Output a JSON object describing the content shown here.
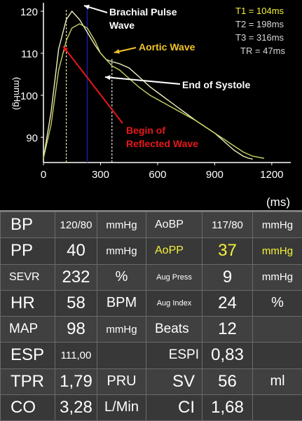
{
  "chart_data": {
    "type": "line",
    "ylabel": "(mmHg)",
    "xunit": "(ms)",
    "xlim": [
      0,
      1300
    ],
    "ylim": [
      84,
      122
    ],
    "xticks": [
      0,
      300,
      600,
      900,
      1200
    ],
    "yticks": [
      90,
      100,
      110,
      120
    ],
    "series": [
      {
        "x": [
          0,
          40,
          80,
          120,
          150,
          190,
          230,
          270,
          300,
          330,
          360,
          400,
          450,
          500,
          560,
          620,
          680,
          740,
          800,
          850,
          900,
          950,
          1000,
          1050,
          1080,
          1100
        ],
        "y": [
          85,
          96,
          111,
          118,
          120,
          118,
          115,
          112,
          110,
          108.5,
          108,
          107.5,
          106.5,
          104.5,
          102,
          100,
          98,
          96,
          94,
          92.5,
          91,
          89,
          87,
          85.5,
          85,
          84.8
        ]
      },
      {
        "x": [
          0,
          40,
          80,
          120,
          150,
          190,
          230,
          270,
          300,
          330,
          360,
          400,
          450,
          500,
          560,
          620,
          680,
          740,
          800,
          850,
          900,
          950,
          1000,
          1050,
          1100,
          1160
        ],
        "y": [
          85,
          93,
          106,
          113,
          116,
          117,
          116,
          113,
          110,
          108.5,
          107,
          106,
          104,
          102,
          100,
          98.5,
          97,
          95.5,
          94,
          92.5,
          91,
          89.5,
          88,
          86.5,
          85.5,
          85
        ]
      }
    ],
    "markers": [
      {
        "x": 120,
        "y0": 84,
        "y1": 120.5
      },
      {
        "x": 230,
        "y0": 84,
        "y1": 121
      },
      {
        "x": 360,
        "y0": 84,
        "y1": 109
      }
    ],
    "annotations": [
      {
        "text1": "Brachial Pulse",
        "text2": "Wave",
        "color": "#ffffff"
      },
      {
        "text1": "Aortic Wave",
        "color": "#f2c428"
      },
      {
        "text1": "End of Systole",
        "color": "#ffffff"
      },
      {
        "text1": "Begin of",
        "text2": "Reflected Wave",
        "color": "#e81818"
      }
    ],
    "timings": [
      {
        "label": "T1 = ",
        "value": "104ms",
        "color": "#f4f23a"
      },
      {
        "label": "T2 = ",
        "value": "198ms",
        "color": "#d8d8d8"
      },
      {
        "label": "T3 = ",
        "value": "316ms",
        "color": "#d8d8d8"
      },
      {
        "label": "TR = ",
        "value": "47ms",
        "color": "#d8d8d8"
      }
    ],
    "colors": {
      "series1": "#f0f0c0",
      "series2": "#c8d060",
      "marker_mid": "#2020c0",
      "accent": "#f4f23a"
    }
  },
  "metrics": {
    "r1": {
      "l1": "BP",
      "v1": "120/80",
      "u1": "mmHg",
      "l2": "AoBP",
      "v2": "117/80",
      "u2": "mmHg"
    },
    "r2": {
      "l1": "PP",
      "v1": "40",
      "u1": "mmHg",
      "l2": "AoPP",
      "v2": "37",
      "u2": "mmHg"
    },
    "r3": {
      "l1": "SEVR",
      "v1": "232",
      "u1": "%",
      "l2": "Aug Press",
      "v2": "9",
      "u2": "mmHg"
    },
    "r4": {
      "l1": "HR",
      "v1": "58",
      "u1": "BPM",
      "l2": "Aug Index",
      "v2": "24",
      "u2": "%"
    },
    "r5": {
      "l1": "MAP",
      "v1": "98",
      "u1": "mmHg",
      "l2": "Beats",
      "v2": "12",
      "u2": ""
    },
    "r6": {
      "l1": "ESP",
      "v1": "111,00",
      "u1": "",
      "l2": "ESPI",
      "v2": "0,83",
      "u2": ""
    },
    "r7": {
      "l1": "TPR",
      "v1": "1,79",
      "u1": "PRU",
      "l2": "SV",
      "v2": "56",
      "u2": "ml"
    },
    "r8": {
      "l1": "CO",
      "v1": "3,28",
      "u1": "L/Min",
      "l2": "CI",
      "v2": "1,68",
      "u2": ""
    }
  }
}
